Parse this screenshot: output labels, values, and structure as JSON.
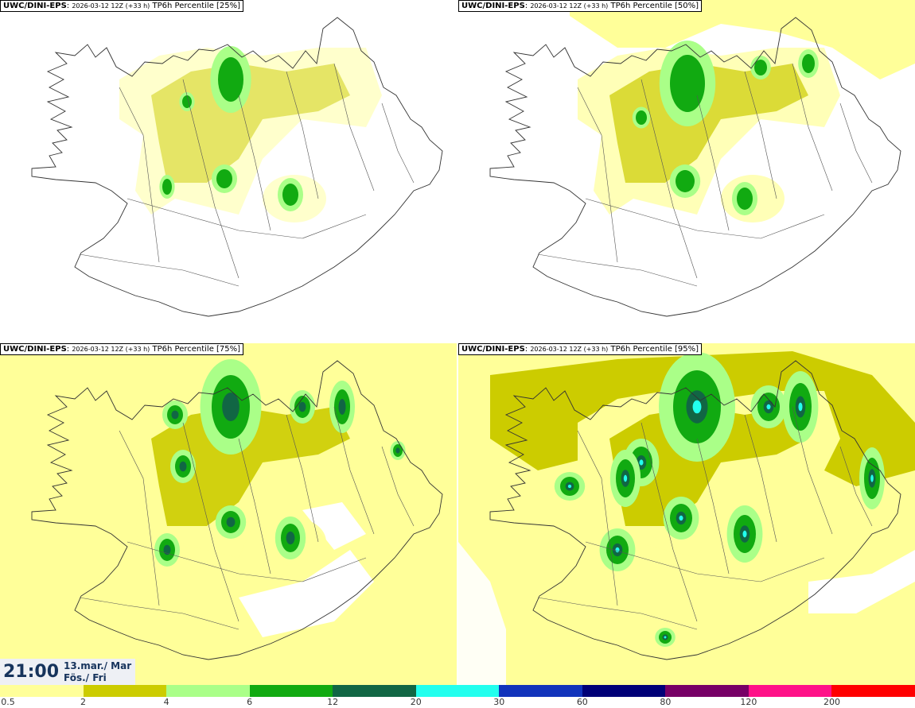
{
  "panels": [
    {
      "title_bold": "UWC/DINI-EPS",
      "run": "2026-03-12 12Z (+33 h)",
      "field": "TP6h Percentile [25%]",
      "intensity": 1
    },
    {
      "title_bold": "UWC/DINI-EPS",
      "run": "2026-03-12 12Z (+33 h)",
      "field": "TP6h Percentile [50%]",
      "intensity": 2
    },
    {
      "title_bold": "UWC/DINI-EPS",
      "run": "2026-03-12 12Z (+33 h)",
      "field": "TP6h Percentile [75%]",
      "intensity": 3
    },
    {
      "title_bold": "UWC/DINI-EPS",
      "run": "2026-03-12 12Z (+33 h)",
      "field": "TP6h Percentile [95%]",
      "intensity": 4
    }
  ],
  "time": {
    "clock": "21:00",
    "date_line1": "13.mar./ Mar",
    "date_line2": "Fös./ Fri"
  },
  "legend": {
    "ticks": [
      "0.5",
      "2",
      "4",
      "6",
      "12",
      "20",
      "30",
      "60",
      "80",
      "120",
      "200"
    ],
    "colors": [
      "#ffff99",
      "#cccc00",
      "#aaff88",
      "#11aa11",
      "#116644",
      "#22ffee",
      "#1133bb",
      "#000077",
      "#770066",
      "#ff1188",
      "#ff0000"
    ]
  }
}
